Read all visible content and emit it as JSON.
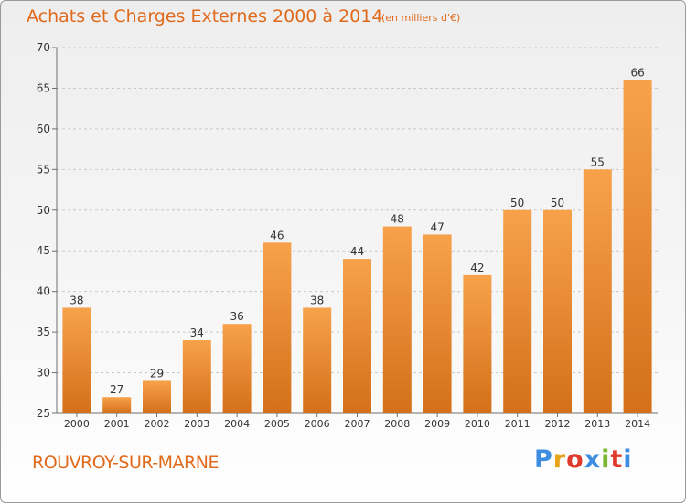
{
  "header": {
    "title": "Achats et Charges Externes 2000 à 2014",
    "subtitle": "(en milliers d'€)"
  },
  "footer": {
    "commune": "ROUVROY-SUR-MARNE",
    "brand": "Proxiti",
    "brand_colors": [
      "#3d8ee0",
      "#e8a418",
      "#e03a2c",
      "#3d8ee0",
      "#7ab832",
      "#e03a2c",
      "#3d8ee0"
    ]
  },
  "colors": {
    "bar_light": "#f7a24a",
    "bar_dark": "#d4701a",
    "text_accent": "#e06a1b",
    "grid": "#c9c9c9",
    "axis": "#6f6f6f",
    "label": "#333333"
  },
  "chart_data": {
    "type": "bar",
    "title": "Achats et Charges Externes 2000 à 2014",
    "subtitle": "(en milliers d'€)",
    "categories": [
      "2000",
      "2001",
      "2002",
      "2003",
      "2004",
      "2005",
      "2006",
      "2007",
      "2008",
      "2009",
      "2010",
      "2011",
      "2012",
      "2013",
      "2014"
    ],
    "values": [
      38,
      27,
      29,
      34,
      36,
      46,
      38,
      44,
      48,
      47,
      42,
      50,
      50,
      55,
      66
    ],
    "xlabel": "",
    "ylabel": "",
    "ylim": [
      25,
      70
    ],
    "yticks": [
      25,
      30,
      35,
      40,
      45,
      50,
      55,
      60,
      65,
      70
    ],
    "grid": true,
    "data_labels": true
  }
}
